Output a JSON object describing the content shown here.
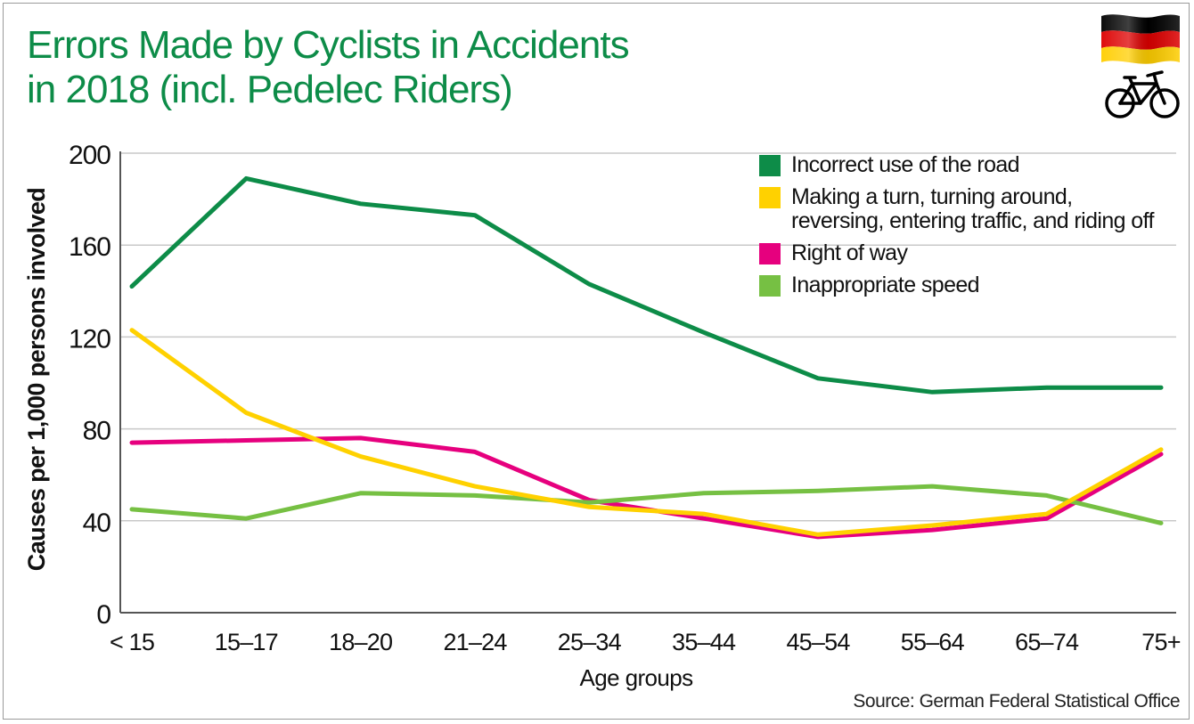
{
  "chart_data": {
    "type": "line",
    "title": [
      "Errors Made by Cyclists in Accidents",
      "in 2018 (incl. Pedelec Riders)"
    ],
    "xlabel": "Age groups",
    "ylabel": "Causes per 1,000 persons involved",
    "ylim": [
      0,
      200
    ],
    "yticks": [
      0,
      40,
      80,
      120,
      160,
      200
    ],
    "grid": true,
    "legend_position": "top-right",
    "categories": [
      "< 15",
      "15–17",
      "18–20",
      "21–24",
      "25–34",
      "35–44",
      "45–54",
      "55–64",
      "65–74",
      "75+"
    ],
    "series": [
      {
        "name": "Incorrect use of the road",
        "color": "#0d8c48",
        "values": [
          142,
          189,
          178,
          173,
          143,
          122,
          102,
          96,
          98,
          98
        ]
      },
      {
        "name": "Right of way",
        "color": "#e6007e",
        "values": [
          74,
          75,
          76,
          70,
          49,
          41,
          33,
          36,
          41,
          69
        ]
      },
      {
        "name": "Inappropriate speed",
        "color": "#76c043",
        "values": [
          45,
          41,
          52,
          51,
          48,
          52,
          53,
          55,
          51,
          39
        ]
      },
      {
        "name": "Making a turn, turning around, reversing, entering traffic, and riding off",
        "color": "#ffd100",
        "values": [
          123,
          87,
          68,
          55,
          46,
          43,
          34,
          38,
          43,
          71
        ]
      }
    ],
    "legend": [
      {
        "lines": [
          "Incorrect use of the road"
        ],
        "color": "#0d8c48"
      },
      {
        "lines": [
          "Making a turn, turning around,",
          "reversing, entering traffic, and riding off"
        ],
        "color": "#ffd100"
      },
      {
        "lines": [
          "Right of way"
        ],
        "color": "#e6007e"
      },
      {
        "lines": [
          "Inappropriate speed"
        ],
        "color": "#76c043"
      }
    ]
  },
  "source": "Source: German Federal Statistical Office",
  "icons": {
    "flag": "germany-flag-icon",
    "bike": "bicycle-icon"
  },
  "flag_colors": [
    "#000000",
    "#dd0000",
    "#ffce00"
  ]
}
